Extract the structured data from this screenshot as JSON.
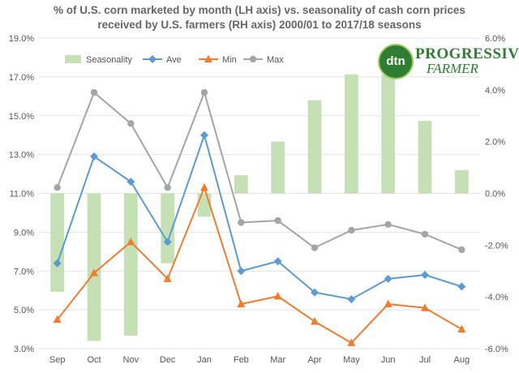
{
  "chart_data": {
    "type": "bar+line",
    "title_line1": "% of U.S. corn marketed by month (LH axis) vs. seasonality of cash corn prices",
    "title_line2": "received by U.S. farmers (RH axis)   2000/01 to 2017/18 seasons",
    "categories": [
      "Sep",
      "Oct",
      "Nov",
      "Dec",
      "Jan",
      "Feb",
      "Mar",
      "Apr",
      "May",
      "Jun",
      "Jul",
      "Aug"
    ],
    "left_axis": {
      "ylim": [
        3.0,
        19.0
      ],
      "ticks": [
        "3.0%",
        "5.0%",
        "7.0%",
        "9.0%",
        "11.0%",
        "13.0%",
        "15.0%",
        "17.0%",
        "19.0%"
      ]
    },
    "right_axis": {
      "ylim": [
        -6.0,
        6.0
      ],
      "ticks": [
        "-6.0%",
        "-4.0%",
        "-2.0%",
        "0.0%",
        "2.0%",
        "4.0%",
        "6.0%"
      ]
    },
    "bar_series": {
      "name": "Seasonality",
      "axis": "right",
      "color": "#c5e0b4",
      "values": [
        -3.8,
        -5.7,
        -5.5,
        -2.7,
        -0.9,
        0.7,
        2.0,
        3.6,
        4.6,
        4.6,
        2.8,
        0.9
      ]
    },
    "line_series": [
      {
        "name": "Ave",
        "axis": "left",
        "color": "#5b9bd5",
        "marker": "diamond",
        "values": [
          7.4,
          12.9,
          11.6,
          8.5,
          14.0,
          7.0,
          7.5,
          5.9,
          5.55,
          6.6,
          6.8,
          6.2
        ]
      },
      {
        "name": "Min",
        "axis": "left",
        "color": "#ed7d31",
        "marker": "triangle",
        "values": [
          4.5,
          6.9,
          8.5,
          6.6,
          11.3,
          5.3,
          5.7,
          4.4,
          3.3,
          5.3,
          5.1,
          4.0
        ]
      },
      {
        "name": "Max",
        "axis": "left",
        "color": "#a5a5a5",
        "marker": "circle",
        "values": [
          11.3,
          16.2,
          14.6,
          11.3,
          16.2,
          9.5,
          9.6,
          8.2,
          9.1,
          9.4,
          8.9,
          8.1
        ]
      }
    ],
    "legend_position": "top-left",
    "grid": "horizontal"
  },
  "logo": {
    "badge": "dtn",
    "word1": "PROGRESSIVE",
    "word2": "FARMER"
  }
}
